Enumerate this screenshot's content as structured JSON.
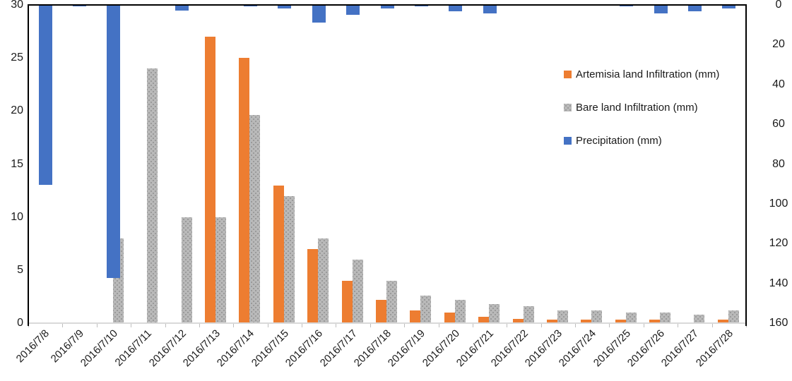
{
  "chart_data": {
    "type": "bar",
    "title": "",
    "xlabel": "",
    "ylabel_left": "",
    "ylabel_right": "",
    "grid": false,
    "categories": [
      "2016/7/8",
      "2016/7/9",
      "2016/7/10",
      "2016/7/11",
      "2016/7/12",
      "2016/7/13",
      "2016/7/14",
      "2016/7/15",
      "2016/7/16",
      "2016/7/17",
      "2016/7/18",
      "2016/7/19",
      "2016/7/20",
      "2016/7/21",
      "2016/7/22",
      "2016/7/23",
      "2016/7/24",
      "2016/7/25",
      "2016/7/26",
      "2016/7/27",
      "2016/7/28"
    ],
    "series": [
      {
        "name": "Artemisia land Infiltration (mm)",
        "axis": "left",
        "color": "#ED7D31",
        "pattern": "solid",
        "values": [
          0,
          0,
          0,
          0,
          0,
          27,
          25,
          13,
          7,
          4,
          2.2,
          1.2,
          1,
          0.6,
          0.4,
          0.3,
          0.3,
          0.3,
          0.3,
          0,
          0.3
        ]
      },
      {
        "name": "Bare land Infiltration (mm)",
        "axis": "left",
        "color": "#A6A6A6",
        "pattern": "dots",
        "values": [
          0,
          0,
          8,
          24,
          10,
          10,
          19.6,
          12,
          8,
          6,
          4,
          2.6,
          2.2,
          1.8,
          1.6,
          1.2,
          1.2,
          1,
          1,
          0.8,
          1.2
        ]
      },
      {
        "name": "Precipitation (mm)",
        "axis": "right-inverted",
        "color": "#4472C4",
        "pattern": "solid",
        "values": [
          90,
          0.5,
          137,
          0,
          2.4,
          0,
          0.4,
          1.4,
          8.5,
          4.6,
          1.4,
          0.5,
          2.8,
          3.9,
          0,
          0,
          0,
          0.4,
          3.9,
          2.8,
          1.4
        ]
      }
    ],
    "left_axis": {
      "min": 0,
      "max": 30,
      "step": 5,
      "ticks": [
        0,
        5,
        10,
        15,
        20,
        25,
        30
      ]
    },
    "right_axis": {
      "min": 0,
      "max": 160,
      "step": 20,
      "inverted": true,
      "ticks": [
        0,
        20,
        40,
        60,
        80,
        100,
        120,
        140,
        160
      ]
    },
    "legend": {
      "position": "right-inside"
    }
  }
}
